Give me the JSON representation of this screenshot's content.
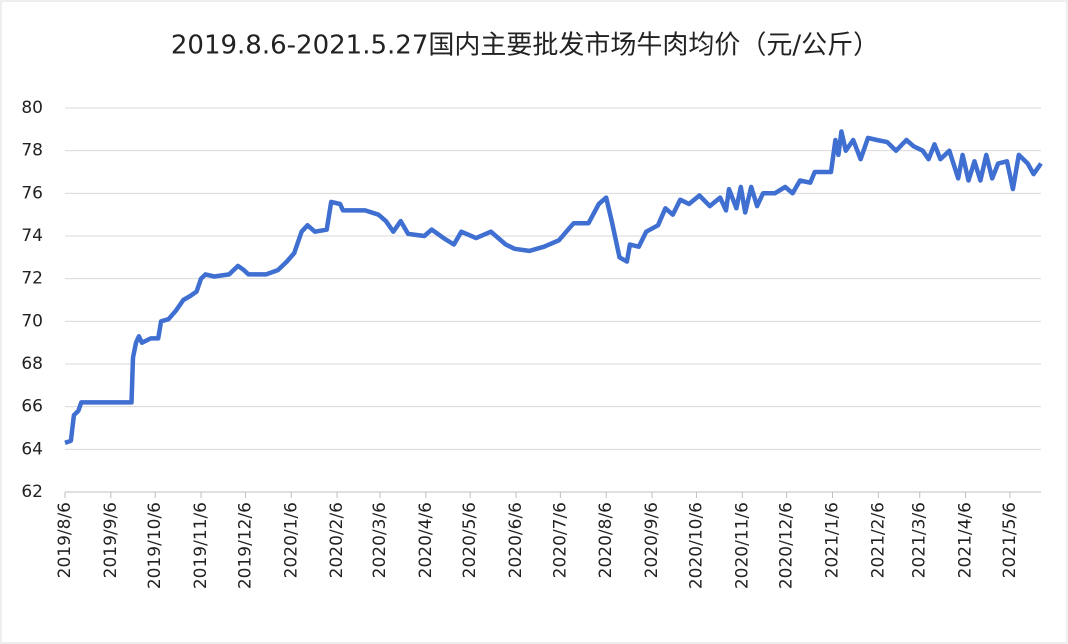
{
  "chart_data": {
    "type": "line",
    "title": "2019.8.6-2021.5.27国内主要批发市场牛肉均价（元/公斤）",
    "x": [
      "2019/8/6",
      "2019/8/10",
      "2019/8/12",
      "2019/8/15",
      "2019/8/17",
      "2019/9/20",
      "2019/9/21",
      "2019/9/23",
      "2019/9/25",
      "2019/9/27",
      "2019/10/3",
      "2019/10/8",
      "2019/10/10",
      "2019/10/15",
      "2019/10/20",
      "2019/10/25",
      "2019/10/30",
      "2019/11/3",
      "2019/11/6",
      "2019/11/9",
      "2019/11/15",
      "2019/11/25",
      "2019/12/1",
      "2019/12/5",
      "2019/12/8",
      "2019/12/20",
      "2019/12/28",
      "2020/1/3",
      "2020/1/8",
      "2020/1/13",
      "2020/1/17",
      "2020/1/22",
      "2020/1/30",
      "2020/2/2",
      "2020/2/8",
      "2020/2/10",
      "2020/2/25",
      "2020/3/5",
      "2020/3/10",
      "2020/3/15",
      "2020/3/20",
      "2020/3/25",
      "2020/4/5",
      "2020/4/10",
      "2020/4/18",
      "2020/4/25",
      "2020/4/30",
      "2020/5/10",
      "2020/5/20",
      "2020/5/30",
      "2020/6/5",
      "2020/6/15",
      "2020/6/25",
      "2020/7/5",
      "2020/7/10",
      "2020/7/15",
      "2020/7/25",
      "2020/8/1",
      "2020/8/6",
      "2020/8/10",
      "2020/8/15",
      "2020/8/20",
      "2020/8/22",
      "2020/8/28",
      "2020/9/2",
      "2020/9/10",
      "2020/9/15",
      "2020/9/20",
      "2020/9/25",
      "2020/10/1",
      "2020/10/8",
      "2020/10/15",
      "2020/10/22",
      "2020/10/26",
      "2020/10/28",
      "2020/11/2",
      "2020/11/5",
      "2020/11/8",
      "2020/11/12",
      "2020/11/16",
      "2020/11/20",
      "2020/11/28",
      "2020/12/5",
      "2020/12/10",
      "2020/12/15",
      "2020/12/22",
      "2020/12/25",
      "2021/1/5",
      "2021/1/8",
      "2021/1/10",
      "2021/1/12",
      "2021/1/15",
      "2021/1/20",
      "2021/1/25",
      "2021/1/30",
      "2021/2/5",
      "2021/2/12",
      "2021/2/18",
      "2021/2/25",
      "2021/3/2",
      "2021/3/8",
      "2021/3/12",
      "2021/3/16",
      "2021/3/20",
      "2021/3/26",
      "2021/4/1",
      "2021/4/4",
      "2021/4/8",
      "2021/4/12",
      "2021/4/16",
      "2021/4/20",
      "2021/4/24",
      "2021/4/28",
      "2021/5/4",
      "2021/5/8",
      "2021/5/12",
      "2021/5/18",
      "2021/5/22",
      "2021/5/27"
    ],
    "series": [
      {
        "color": "#3f6fd1",
        "values": [
          64.3,
          64.4,
          65.6,
          65.8,
          66.2,
          66.2,
          68.3,
          69.0,
          69.3,
          69.0,
          69.2,
          69.2,
          70.0,
          70.1,
          70.5,
          71.0,
          71.2,
          71.4,
          72.0,
          72.2,
          72.1,
          72.2,
          72.6,
          72.4,
          72.2,
          72.2,
          72.4,
          72.8,
          73.2,
          74.2,
          74.5,
          74.2,
          74.3,
          75.6,
          75.5,
          75.2,
          75.2,
          75.0,
          74.7,
          74.2,
          74.7,
          74.1,
          74.0,
          74.3,
          73.9,
          73.6,
          74.2,
          73.9,
          74.2,
          73.6,
          73.4,
          73.3,
          73.5,
          73.8,
          74.2,
          74.6,
          74.6,
          75.5,
          75.8,
          74.6,
          73.0,
          72.8,
          73.6,
          73.5,
          74.2,
          74.5,
          75.3,
          75.0,
          75.7,
          75.5,
          75.9,
          75.4,
          75.8,
          75.2,
          76.2,
          75.3,
          76.3,
          75.1,
          76.3,
          75.4,
          76.0,
          76.0,
          76.3,
          76.0,
          76.6,
          76.5,
          77.0,
          77.0,
          78.5,
          77.8,
          78.9,
          78.0,
          78.5,
          77.6,
          78.6,
          78.5,
          78.4,
          78.0,
          78.5,
          78.2,
          78.0,
          77.6,
          78.3,
          77.6,
          78.0,
          76.7,
          77.8,
          76.6,
          77.5,
          76.6,
          77.8,
          76.7,
          77.4,
          77.5,
          76.2,
          77.8,
          77.4,
          76.9,
          77.4
        ]
      }
    ],
    "xlim": [
      "2019/8/6",
      "2021/5/27"
    ],
    "xticks": [
      "2019/8/6",
      "2019/9/6",
      "2019/10/6",
      "2019/11/6",
      "2019/12/6",
      "2020/1/6",
      "2020/2/6",
      "2020/3/6",
      "2020/4/6",
      "2020/5/6",
      "2020/6/6",
      "2020/7/6",
      "2020/8/6",
      "2020/9/6",
      "2020/10/6",
      "2020/11/6",
      "2020/12/6",
      "2021/1/6",
      "2021/2/6",
      "2021/3/6",
      "2021/4/6",
      "2021/5/6"
    ],
    "ylim": [
      62,
      80
    ],
    "yticks": [
      62,
      64,
      66,
      68,
      70,
      72,
      74,
      76,
      78,
      80
    ],
    "grid": true
  }
}
